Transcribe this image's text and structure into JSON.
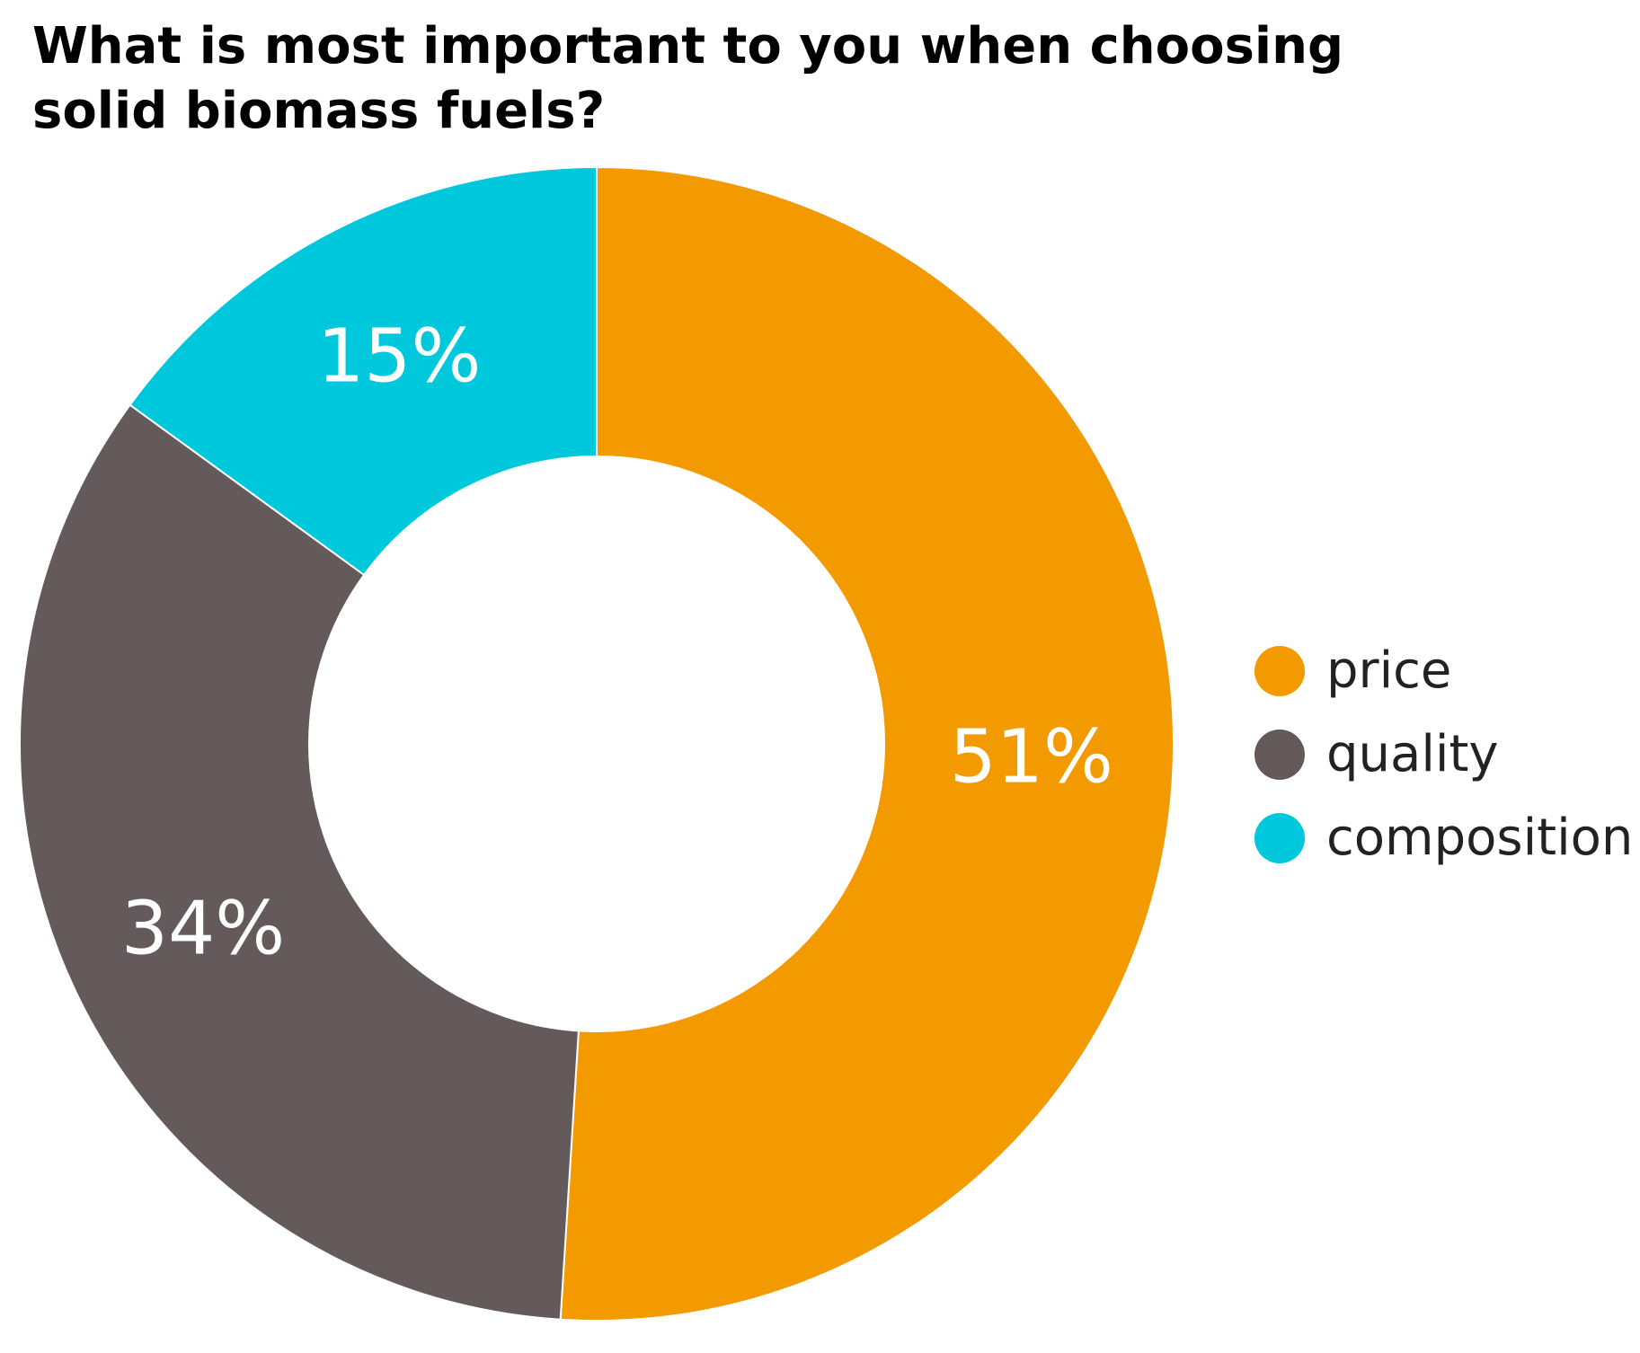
{
  "chart_data": {
    "type": "pie",
    "donut": true,
    "title": "What is most important to you when choosing\nsolid biomass fuels?",
    "categories": [
      "price",
      "quality",
      "composition"
    ],
    "values": [
      51,
      34,
      15
    ],
    "labels": [
      "51%",
      "34%",
      "15%"
    ],
    "colors": [
      "#F39A00",
      "#645A5B",
      "#00C8DC"
    ],
    "legend": "right"
  }
}
